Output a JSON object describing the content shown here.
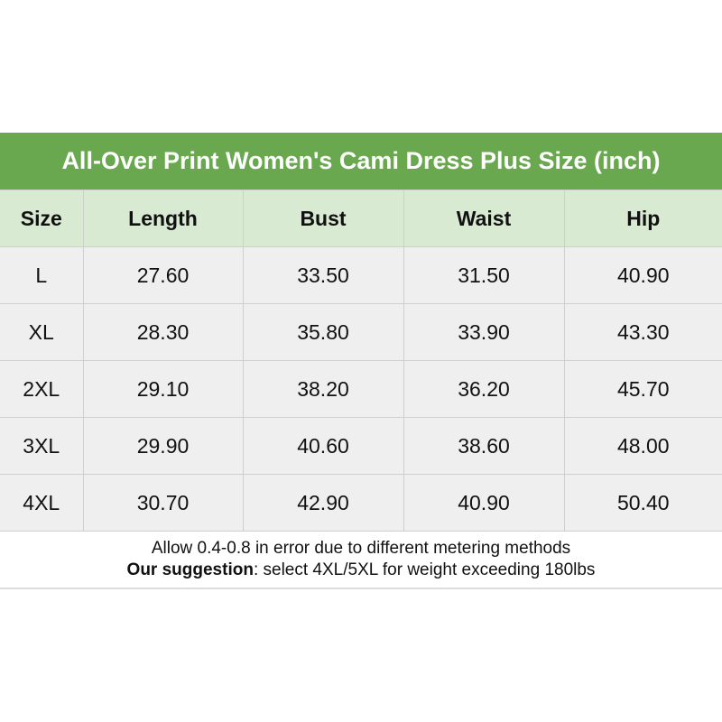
{
  "title": "All-Over Print Women's Cami Dress Plus Size (inch)",
  "columns": [
    "Size",
    "Length",
    "Bust",
    "Waist",
    "Hip"
  ],
  "rows": [
    [
      "L",
      "27.60",
      "33.50",
      "31.50",
      "40.90"
    ],
    [
      "XL",
      "28.30",
      "35.80",
      "33.90",
      "43.30"
    ],
    [
      "2XL",
      "29.10",
      "38.20",
      "36.20",
      "45.70"
    ],
    [
      "3XL",
      "29.90",
      "40.60",
      "38.60",
      "48.00"
    ],
    [
      "4XL",
      "30.70",
      "42.90",
      "40.90",
      "50.40"
    ]
  ],
  "note": {
    "line1": "Allow 0.4-0.8 in error due to different metering methods",
    "suggestion_label": "Our suggestion",
    "suggestion_text": ": select 4XL/5XL for weight exceeding 180lbs"
  },
  "colors": {
    "title_bg": "#6aa84f",
    "header_bg": "#d9ead3",
    "row_bg": "#efefef"
  }
}
